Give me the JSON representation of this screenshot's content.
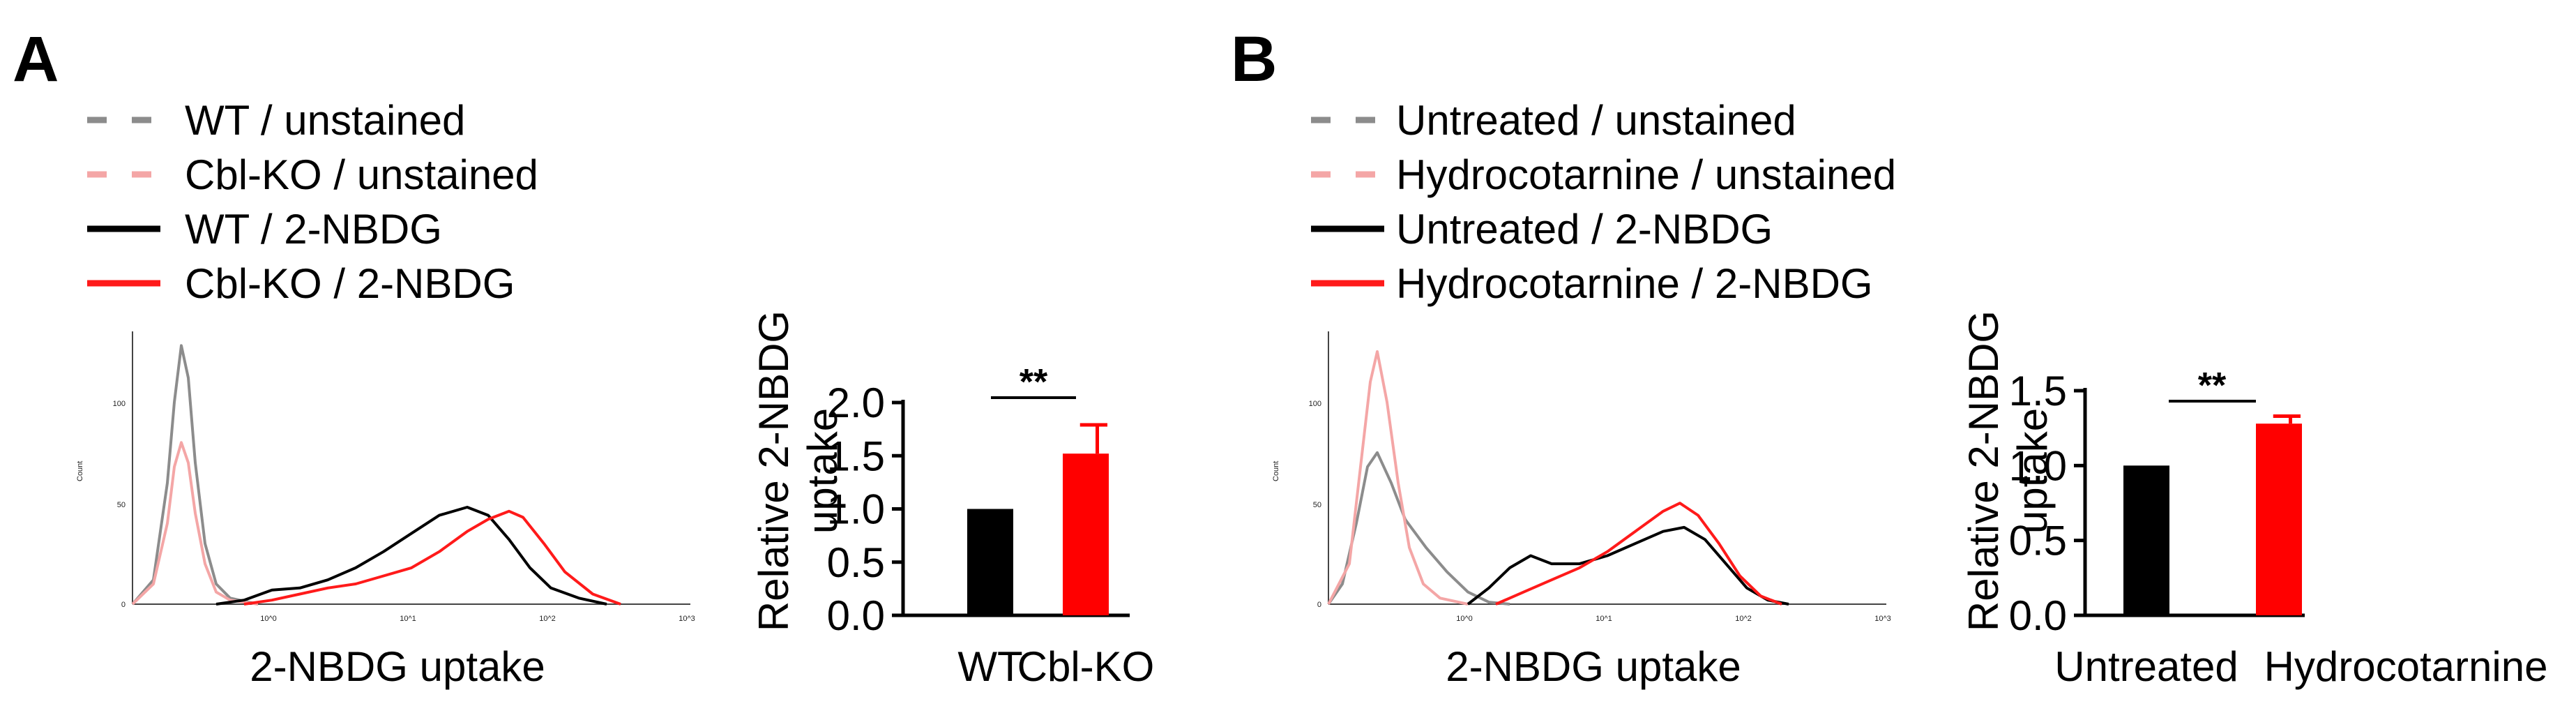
{
  "panels": [
    {
      "letter": "A",
      "legend": [
        {
          "label": "WT / unstained",
          "color": "#8c8c8c",
          "style": "dashed"
        },
        {
          "label": "Cbl-KO / unstained",
          "color": "#f4a6a6",
          "style": "dashed"
        },
        {
          "label": "WT / 2-NBDG",
          "color": "#000000",
          "style": "solid"
        },
        {
          "label": "Cbl-KO / 2-NBDG",
          "color": "#ff1a1a",
          "style": "solid"
        }
      ],
      "histogram": {
        "type": "line",
        "xlabel": "2-NBDG uptake",
        "ylabel": "Count",
        "yticks": [
          "0",
          "50",
          "100"
        ],
        "xticks": [
          "10^0",
          "10^1",
          "10^2",
          "10^3"
        ],
        "ylim": [
          0,
          135
        ],
        "series": [
          {
            "name": "WT / unstained",
            "color": "#8c8c8c",
            "points": [
              [
                -1.0,
                0
              ],
              [
                -0.85,
                12
              ],
              [
                -0.75,
                60
              ],
              [
                -0.7,
                100
              ],
              [
                -0.65,
                128
              ],
              [
                -0.6,
                112
              ],
              [
                -0.55,
                70
              ],
              [
                -0.48,
                30
              ],
              [
                -0.4,
                10
              ],
              [
                -0.3,
                3
              ],
              [
                -0.1,
                0
              ]
            ]
          },
          {
            "name": "Cbl-KO / unstained",
            "color": "#f4a6a6",
            "points": [
              [
                -1.0,
                0
              ],
              [
                -0.85,
                10
              ],
              [
                -0.75,
                40
              ],
              [
                -0.7,
                68
              ],
              [
                -0.65,
                80
              ],
              [
                -0.6,
                70
              ],
              [
                -0.55,
                45
              ],
              [
                -0.48,
                20
              ],
              [
                -0.4,
                6
              ],
              [
                -0.3,
                2
              ],
              [
                -0.1,
                0
              ]
            ]
          },
          {
            "name": "WT / 2-NBDG",
            "color": "#000000",
            "points": [
              [
                -0.4,
                0
              ],
              [
                -0.2,
                2
              ],
              [
                0.0,
                7
              ],
              [
                0.2,
                8
              ],
              [
                0.4,
                12
              ],
              [
                0.6,
                18
              ],
              [
                0.8,
                26
              ],
              [
                1.0,
                35
              ],
              [
                1.2,
                44
              ],
              [
                1.4,
                48
              ],
              [
                1.55,
                44
              ],
              [
                1.7,
                32
              ],
              [
                1.85,
                18
              ],
              [
                2.0,
                8
              ],
              [
                2.2,
                3
              ],
              [
                2.4,
                0
              ]
            ]
          },
          {
            "name": "Cbl-KO / 2-NBDG",
            "color": "#ff1a1a",
            "points": [
              [
                -0.2,
                0
              ],
              [
                0.0,
                2
              ],
              [
                0.2,
                5
              ],
              [
                0.4,
                8
              ],
              [
                0.6,
                10
              ],
              [
                0.8,
                14
              ],
              [
                1.0,
                18
              ],
              [
                1.2,
                26
              ],
              [
                1.4,
                36
              ],
              [
                1.55,
                42
              ],
              [
                1.7,
                46
              ],
              [
                1.8,
                43
              ],
              [
                1.95,
                30
              ],
              [
                2.1,
                16
              ],
              [
                2.3,
                5
              ],
              [
                2.5,
                0
              ]
            ]
          }
        ]
      },
      "bar": {
        "type": "bar",
        "ylabel": "Relative 2-NBDG uptake",
        "ylabel_lines": [
          "Relative 2-NBDG",
          "uptake"
        ],
        "categories": [
          "WT",
          "Cbl-KO"
        ],
        "values": [
          1.0,
          1.52
        ],
        "errors": [
          0.0,
          0.27
        ],
        "colors": [
          "#000000",
          "#ff0000"
        ],
        "ylim": [
          0,
          2.0
        ],
        "yticks": [
          "0.0",
          "0.5",
          "1.0",
          "1.5",
          "2.0"
        ],
        "significance": "**"
      }
    },
    {
      "letter": "B",
      "legend": [
        {
          "label": "Untreated / unstained",
          "color": "#8c8c8c",
          "style": "dashed"
        },
        {
          "label": "Hydrocotarnine / unstained",
          "color": "#f4a6a6",
          "style": "dashed"
        },
        {
          "label": "Untreated / 2-NBDG",
          "color": "#000000",
          "style": "solid"
        },
        {
          "label": "Hydrocotarnine / 2-NBDG",
          "color": "#ff1a1a",
          "style": "solid"
        }
      ],
      "histogram": {
        "type": "line",
        "xlabel": "2-NBDG uptake",
        "ylabel": "Count",
        "yticks": [
          "0",
          "50",
          "100"
        ],
        "xticks": [
          "10^0",
          "10^1",
          "10^2",
          "10^3"
        ],
        "ylim": [
          0,
          135
        ],
        "series": [
          {
            "name": "Untreated / unstained",
            "color": "#8c8c8c",
            "points": [
              [
                -1.0,
                0
              ],
              [
                -0.9,
                10
              ],
              [
                -0.8,
                40
              ],
              [
                -0.72,
                68
              ],
              [
                -0.65,
                75
              ],
              [
                -0.55,
                60
              ],
              [
                -0.45,
                42
              ],
              [
                -0.3,
                28
              ],
              [
                -0.15,
                16
              ],
              [
                0.0,
                6
              ],
              [
                0.15,
                1
              ],
              [
                0.3,
                0
              ]
            ]
          },
          {
            "name": "Hydrocotarnine / unstained",
            "color": "#f4a6a6",
            "points": [
              [
                -1.0,
                0
              ],
              [
                -0.85,
                20
              ],
              [
                -0.75,
                80
              ],
              [
                -0.7,
                110
              ],
              [
                -0.65,
                125
              ],
              [
                -0.58,
                100
              ],
              [
                -0.5,
                60
              ],
              [
                -0.42,
                28
              ],
              [
                -0.32,
                10
              ],
              [
                -0.2,
                3
              ],
              [
                0.0,
                0
              ]
            ]
          },
          {
            "name": "Untreated / 2-NBDG",
            "color": "#000000",
            "points": [
              [
                0.0,
                0
              ],
              [
                0.15,
                8
              ],
              [
                0.3,
                18
              ],
              [
                0.45,
                24
              ],
              [
                0.6,
                20
              ],
              [
                0.8,
                20
              ],
              [
                1.0,
                24
              ],
              [
                1.2,
                30
              ],
              [
                1.4,
                36
              ],
              [
                1.55,
                38
              ],
              [
                1.7,
                32
              ],
              [
                1.85,
                20
              ],
              [
                2.0,
                8
              ],
              [
                2.15,
                2
              ],
              [
                2.3,
                0
              ]
            ]
          },
          {
            "name": "Hydrocotarnine / 2-NBDG",
            "color": "#ff1a1a",
            "points": [
              [
                0.2,
                0
              ],
              [
                0.4,
                6
              ],
              [
                0.6,
                12
              ],
              [
                0.8,
                18
              ],
              [
                1.0,
                26
              ],
              [
                1.2,
                36
              ],
              [
                1.4,
                46
              ],
              [
                1.52,
                50
              ],
              [
                1.65,
                44
              ],
              [
                1.8,
                30
              ],
              [
                1.95,
                14
              ],
              [
                2.1,
                4
              ],
              [
                2.25,
                0
              ]
            ]
          }
        ]
      },
      "bar": {
        "type": "bar",
        "ylabel": "Relative 2-NBDG uptake",
        "ylabel_lines": [
          "Relative 2-NBDG",
          "uptake"
        ],
        "categories": [
          "Untreated",
          "Hydrocotarnine"
        ],
        "values": [
          1.0,
          1.28
        ],
        "errors": [
          0.0,
          0.05
        ],
        "colors": [
          "#000000",
          "#ff0000"
        ],
        "ylim": [
          0,
          1.5
        ],
        "yticks": [
          "0.0",
          "0.5",
          "1.0",
          "1.5"
        ],
        "significance": "**"
      }
    }
  ],
  "chart_data": [
    {
      "type": "line",
      "title": "A",
      "xlabel": "2-NBDG uptake",
      "ylabel": "Count",
      "ylim": [
        0,
        135
      ],
      "series": [
        {
          "name": "WT / unstained"
        },
        {
          "name": "Cbl-KO / unstained"
        },
        {
          "name": "WT / 2-NBDG"
        },
        {
          "name": "Cbl-KO / 2-NBDG"
        }
      ]
    },
    {
      "type": "bar",
      "title": "A",
      "categories": [
        "WT",
        "Cbl-KO"
      ],
      "values": [
        1.0,
        1.52
      ],
      "errors": [
        0.0,
        0.27
      ],
      "ylabel": "Relative 2-NBDG uptake",
      "ylim": [
        0,
        2.0
      ],
      "significance": "**"
    },
    {
      "type": "line",
      "title": "B",
      "xlabel": "2-NBDG uptake",
      "ylabel": "Count",
      "ylim": [
        0,
        135
      ],
      "series": [
        {
          "name": "Untreated / unstained"
        },
        {
          "name": "Hydrocotarnine / unstained"
        },
        {
          "name": "Untreated / 2-NBDG"
        },
        {
          "name": "Hydrocotarnine / 2-NBDG"
        }
      ]
    },
    {
      "type": "bar",
      "title": "B",
      "categories": [
        "Untreated",
        "Hydrocotarnine"
      ],
      "values": [
        1.0,
        1.28
      ],
      "errors": [
        0.0,
        0.05
      ],
      "ylabel": "Relative 2-NBDG uptake",
      "ylim": [
        0,
        1.5
      ],
      "significance": "**"
    }
  ]
}
